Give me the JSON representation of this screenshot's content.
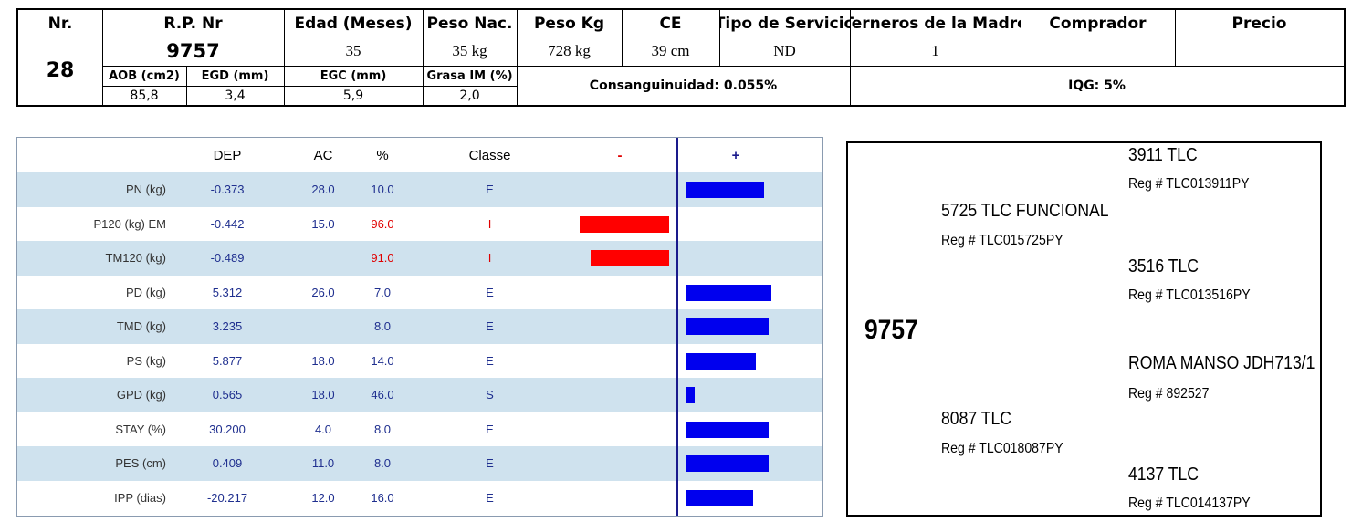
{
  "header": {
    "labels": [
      "Nr.",
      "R.P. Nr",
      "Edad (Meses)",
      "Peso Nac.",
      "Peso Kg",
      "CE",
      "Tipo de Servicio",
      "Terneros de la Madre",
      "Comprador",
      "Precio"
    ],
    "nr": "28",
    "rp": "9757",
    "edad": "35",
    "peso_nac": "35 kg",
    "peso_kg": "728 kg",
    "ce": "39 cm",
    "tipo_servicio": "ND",
    "terneros": "1",
    "comprador": "",
    "precio": ""
  },
  "carcass": {
    "labels": [
      "AOB (cm2)",
      "EGD (mm)",
      "EGC (mm)",
      "Grasa IM (%)"
    ],
    "values": [
      "85,8",
      "3,4",
      "5,9",
      "2,0"
    ]
  },
  "consanguinidad": "Consanguinuidad: 0.055%",
  "iqg": "IQG: 5%",
  "epd": {
    "columns": [
      "DEP",
      "AC",
      "%",
      "Classe",
      "-",
      "+"
    ],
    "colors": {
      "negative": "#ff0000",
      "positive": "#0000ee",
      "row_alt": "#cfe2ee",
      "value_text": "#1f2f8f",
      "red_text": "#e00000"
    },
    "rows": [
      {
        "label": "PN (kg)",
        "dep": "-0.373",
        "ac": "28.0",
        "pct": "10.0",
        "classe": "E",
        "side": "pos",
        "bar": 0.36,
        "red": false
      },
      {
        "label": "P120 (kg) EM",
        "dep": "-0.442",
        "ac": "15.0",
        "pct": "96.0",
        "classe": "I",
        "side": "neg",
        "bar": 0.41,
        "red": true
      },
      {
        "label": "TM120 (kg)",
        "dep": "-0.489",
        "ac": "",
        "pct": "91.0",
        "classe": "I",
        "side": "neg",
        "bar": 0.36,
        "red": true
      },
      {
        "label": "PD (kg)",
        "dep": "5.312",
        "ac": "26.0",
        "pct": "7.0",
        "classe": "E",
        "side": "pos",
        "bar": 0.39,
        "red": false
      },
      {
        "label": "TMD (kg)",
        "dep": "3.235",
        "ac": "",
        "pct": "8.0",
        "classe": "E",
        "side": "pos",
        "bar": 0.38,
        "red": false
      },
      {
        "label": "PS (kg)",
        "dep": "5.877",
        "ac": "18.0",
        "pct": "14.0",
        "classe": "E",
        "side": "pos",
        "bar": 0.32,
        "red": false
      },
      {
        "label": "GPD (kg)",
        "dep": "0.565",
        "ac": "18.0",
        "pct": "46.0",
        "classe": "S",
        "side": "pos",
        "bar": 0.04,
        "red": false
      },
      {
        "label": "STAY (%)",
        "dep": "30.200",
        "ac": "4.0",
        "pct": "8.0",
        "classe": "E",
        "side": "pos",
        "bar": 0.38,
        "red": false
      },
      {
        "label": "PES (cm)",
        "dep": "0.409",
        "ac": "11.0",
        "pct": "8.0",
        "classe": "E",
        "side": "pos",
        "bar": 0.38,
        "red": false
      },
      {
        "label": "IPP (dias)",
        "dep": "-20.217",
        "ac": "12.0",
        "pct": "16.0",
        "classe": "E",
        "side": "pos",
        "bar": 0.31,
        "red": false
      }
    ]
  },
  "pedigree": {
    "animal": "9757",
    "sire": {
      "name": "5725 TLC FUNCIONAL",
      "reg": "Reg # TLC015725PY"
    },
    "dam": {
      "name": "8087 TLC",
      "reg": "Reg # TLC018087PY"
    },
    "sire_sire": {
      "name": "3911 TLC",
      "reg": "Reg # TLC013911PY"
    },
    "sire_dam": {
      "name": "3516 TLC",
      "reg": "Reg # TLC013516PY"
    },
    "dam_sire": {
      "name": "ROMA MANSO JDH713/1",
      "reg": "Reg # 892527"
    },
    "dam_dam": {
      "name": "4137 TLC",
      "reg": "Reg # TLC014137PY"
    }
  }
}
